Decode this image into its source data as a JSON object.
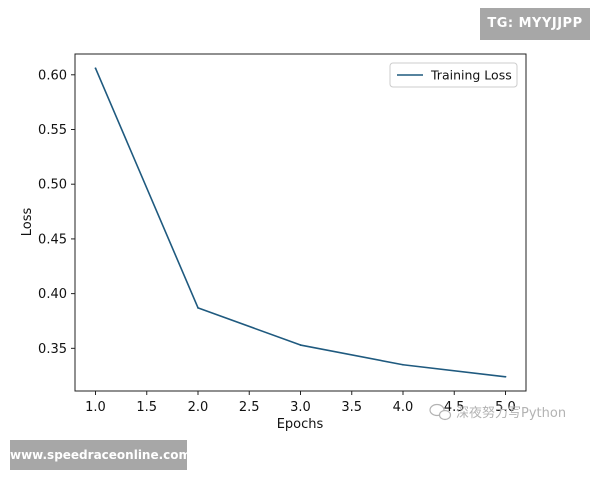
{
  "overlays": {
    "tg_badge": "TG: MYYJJPP",
    "url_badge": "www.speedraceonline.com",
    "watermark": "深夜努力写Python"
  },
  "icons": {
    "watermark_icon": "wechat-icon"
  },
  "colors": {
    "series": "#1f5a7f",
    "axis": "#222222",
    "badge_bg": "#a7a7a7",
    "watermark": "#b3b3b3"
  },
  "chart_data": {
    "type": "line",
    "title": "",
    "xlabel": "Epochs",
    "ylabel": "Loss",
    "x": [
      1,
      2,
      3,
      4,
      5
    ],
    "series": [
      {
        "name": "Training Loss",
        "values": [
          0.606,
          0.387,
          0.353,
          0.335,
          0.324
        ]
      }
    ],
    "xlim": [
      0.8,
      5.2
    ],
    "ylim": [
      0.311,
      0.619
    ],
    "xticks": [
      "1.0",
      "1.5",
      "2.0",
      "2.5",
      "3.0",
      "3.5",
      "4.0",
      "4.5",
      "5.0"
    ],
    "yticks": [
      "0.35",
      "0.40",
      "0.45",
      "0.50",
      "0.55",
      "0.60"
    ],
    "grid": false,
    "legend": "top-right"
  }
}
